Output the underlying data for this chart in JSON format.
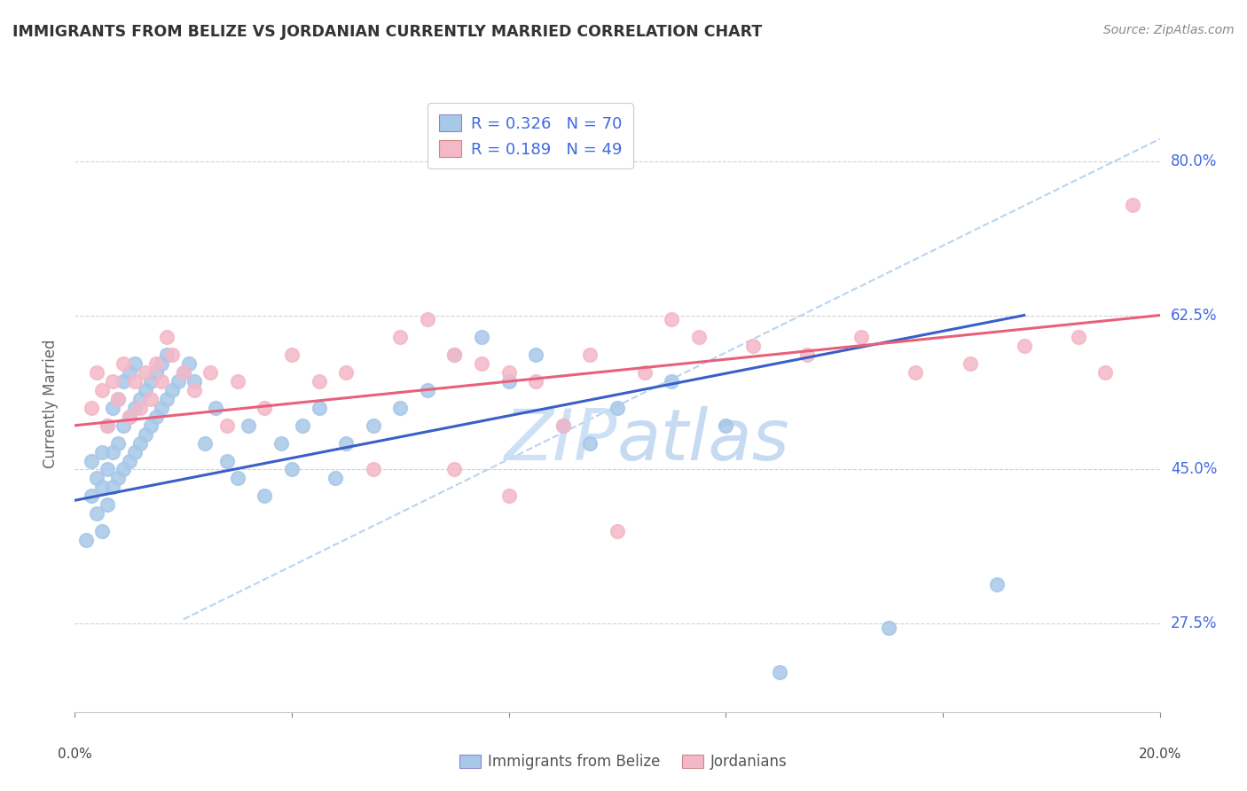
{
  "title": "IMMIGRANTS FROM BELIZE VS JORDANIAN CURRENTLY MARRIED CORRELATION CHART",
  "source": "Source: ZipAtlas.com",
  "ylabel": "Currently Married",
  "ytick_labels": [
    "27.5%",
    "45.0%",
    "62.5%",
    "80.0%"
  ],
  "ytick_values": [
    0.275,
    0.45,
    0.625,
    0.8
  ],
  "xrange": [
    0.0,
    0.2
  ],
  "yrange": [
    0.175,
    0.875
  ],
  "legend_r1": "R = 0.326",
  "legend_n1": "N = 70",
  "legend_r2": "R = 0.189",
  "legend_n2": "N = 49",
  "blue_scatter_color": "#a8c8e8",
  "pink_scatter_color": "#f4b8c8",
  "blue_line_color": "#3a5fc8",
  "pink_line_color": "#e8607a",
  "dashed_line_color": "#b8d4f0",
  "watermark_zip_color": "#c8ddf0",
  "watermark_atlas_color": "#c8ddf0",
  "grid_color": "#cccccc",
  "ytick_color": "#4169E1",
  "belize_scatter_x": [
    0.002,
    0.003,
    0.003,
    0.004,
    0.004,
    0.005,
    0.005,
    0.005,
    0.006,
    0.006,
    0.006,
    0.007,
    0.007,
    0.007,
    0.008,
    0.008,
    0.008,
    0.009,
    0.009,
    0.009,
    0.01,
    0.01,
    0.01,
    0.011,
    0.011,
    0.011,
    0.012,
    0.012,
    0.013,
    0.013,
    0.014,
    0.014,
    0.015,
    0.015,
    0.016,
    0.016,
    0.017,
    0.017,
    0.018,
    0.019,
    0.02,
    0.021,
    0.022,
    0.024,
    0.026,
    0.028,
    0.03,
    0.032,
    0.035,
    0.038,
    0.04,
    0.042,
    0.045,
    0.048,
    0.05,
    0.055,
    0.06,
    0.065,
    0.07,
    0.075,
    0.08,
    0.085,
    0.09,
    0.095,
    0.1,
    0.11,
    0.12,
    0.13,
    0.15,
    0.17
  ],
  "belize_scatter_y": [
    0.37,
    0.42,
    0.46,
    0.4,
    0.44,
    0.38,
    0.43,
    0.47,
    0.41,
    0.45,
    0.5,
    0.43,
    0.47,
    0.52,
    0.44,
    0.48,
    0.53,
    0.45,
    0.5,
    0.55,
    0.46,
    0.51,
    0.56,
    0.47,
    0.52,
    0.57,
    0.48,
    0.53,
    0.49,
    0.54,
    0.5,
    0.55,
    0.51,
    0.56,
    0.52,
    0.57,
    0.53,
    0.58,
    0.54,
    0.55,
    0.56,
    0.57,
    0.55,
    0.48,
    0.52,
    0.46,
    0.44,
    0.5,
    0.42,
    0.48,
    0.45,
    0.5,
    0.52,
    0.44,
    0.48,
    0.5,
    0.52,
    0.54,
    0.58,
    0.6,
    0.55,
    0.58,
    0.5,
    0.48,
    0.52,
    0.55,
    0.5,
    0.22,
    0.27,
    0.32
  ],
  "jordan_scatter_x": [
    0.003,
    0.004,
    0.005,
    0.006,
    0.007,
    0.008,
    0.009,
    0.01,
    0.011,
    0.012,
    0.013,
    0.014,
    0.015,
    0.016,
    0.017,
    0.018,
    0.02,
    0.022,
    0.025,
    0.028,
    0.03,
    0.035,
    0.04,
    0.045,
    0.05,
    0.055,
    0.06,
    0.065,
    0.07,
    0.075,
    0.08,
    0.085,
    0.095,
    0.105,
    0.115,
    0.125,
    0.135,
    0.145,
    0.155,
    0.165,
    0.175,
    0.185,
    0.19,
    0.195,
    0.07,
    0.08,
    0.09,
    0.1,
    0.11
  ],
  "jordan_scatter_y": [
    0.52,
    0.56,
    0.54,
    0.5,
    0.55,
    0.53,
    0.57,
    0.51,
    0.55,
    0.52,
    0.56,
    0.53,
    0.57,
    0.55,
    0.6,
    0.58,
    0.56,
    0.54,
    0.56,
    0.5,
    0.55,
    0.52,
    0.58,
    0.55,
    0.56,
    0.45,
    0.6,
    0.62,
    0.58,
    0.57,
    0.56,
    0.55,
    0.58,
    0.56,
    0.6,
    0.59,
    0.58,
    0.6,
    0.56,
    0.57,
    0.59,
    0.6,
    0.56,
    0.75,
    0.45,
    0.42,
    0.5,
    0.38,
    0.62
  ],
  "belize_line_x": [
    0.0,
    0.175
  ],
  "belize_line_y": [
    0.415,
    0.625
  ],
  "jordan_line_x": [
    0.0,
    0.2
  ],
  "jordan_line_y": [
    0.5,
    0.625
  ],
  "dashed_line_x": [
    0.02,
    0.2
  ],
  "dashed_line_y": [
    0.28,
    0.825
  ]
}
